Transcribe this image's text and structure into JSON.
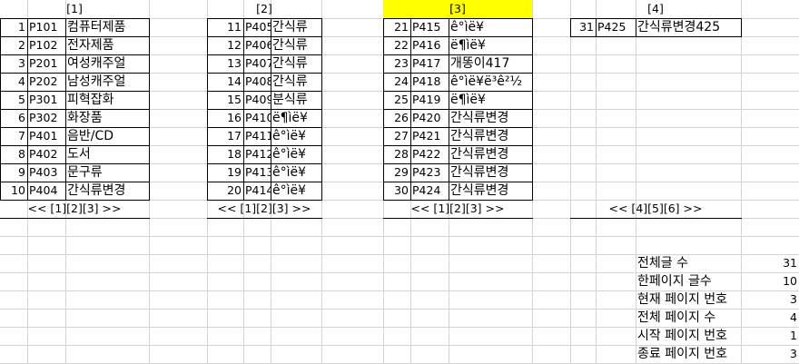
{
  "pages": [
    {
      "header": "[1]",
      "rows": [
        [
          "1",
          "P101",
          "컴퓨터제품"
        ],
        [
          "2",
          "P102",
          "전자제품"
        ],
        [
          "3",
          "P201",
          "여성캐주얼"
        ],
        [
          "4",
          "P202",
          "남성캐주얼"
        ],
        [
          "5",
          "P301",
          "피혁잡화"
        ],
        [
          "6",
          "P302",
          "화장품"
        ],
        [
          "7",
          "P401",
          "음반/CD"
        ],
        [
          "8",
          "P402",
          "도서"
        ],
        [
          "9",
          "P403",
          "문구류"
        ],
        [
          "10",
          "P404",
          "간식류변경"
        ]
      ],
      "nav": "<< [1][2][3] >>"
    },
    {
      "header": "[2]",
      "rows": [
        [
          "11",
          "P405",
          "간식류"
        ],
        [
          "12",
          "P406",
          "간식류"
        ],
        [
          "13",
          "P407",
          "간식류"
        ],
        [
          "14",
          "P408",
          "간식류"
        ],
        [
          "15",
          "P409",
          "분식류"
        ],
        [
          "16",
          "P410",
          "ë¶ìë¥"
        ],
        [
          "17",
          "P411",
          "ê°ìë¥"
        ],
        [
          "18",
          "P412",
          "ê°ìë¥"
        ],
        [
          "19",
          "P413",
          "ê°ìë¥"
        ],
        [
          "20",
          "P414",
          "ê°ìë¥"
        ]
      ],
      "nav": "<< [1][2][3] >>"
    },
    {
      "header": "[3]",
      "rows": [
        [
          "21",
          "P415",
          "ê°ìë¥"
        ],
        [
          "22",
          "P416",
          "ë¶ìë¥"
        ],
        [
          "23",
          "P417",
          "개똥이417"
        ],
        [
          "24",
          "P418",
          "ê°ìë¥ë³ê²½"
        ],
        [
          "25",
          "P419",
          "ë¶ìë¥"
        ],
        [
          "26",
          "P420",
          "간식류변경"
        ],
        [
          "27",
          "P421",
          "간식류변경"
        ],
        [
          "28",
          "P422",
          "간식류변경"
        ],
        [
          "29",
          "P423",
          "간식류변경"
        ],
        [
          "30",
          "P424",
          "간식류변경"
        ]
      ],
      "nav": "<< [1][2][3] >>"
    },
    {
      "header": "[4]",
      "rows": [
        [
          "31",
          "P425",
          "간식류변경425"
        ]
      ],
      "nav": "<< [4][5][6] >>"
    }
  ],
  "summary": [
    {
      "label": "전체글 수",
      "value": "31"
    },
    {
      "label": "한페이지 글수",
      "value": "10"
    },
    {
      "label": "현재 페이지 번호",
      "value": "3"
    },
    {
      "label": "전체 페이지 수",
      "value": "4"
    },
    {
      "label": "시작 페이지 번호",
      "value": "1"
    },
    {
      "label": "종료 페이지 번호",
      "value": "3"
    }
  ],
  "colors": {
    "highlight": "#ffff00",
    "gridline": "#d4d4d4",
    "border": "#000000"
  }
}
